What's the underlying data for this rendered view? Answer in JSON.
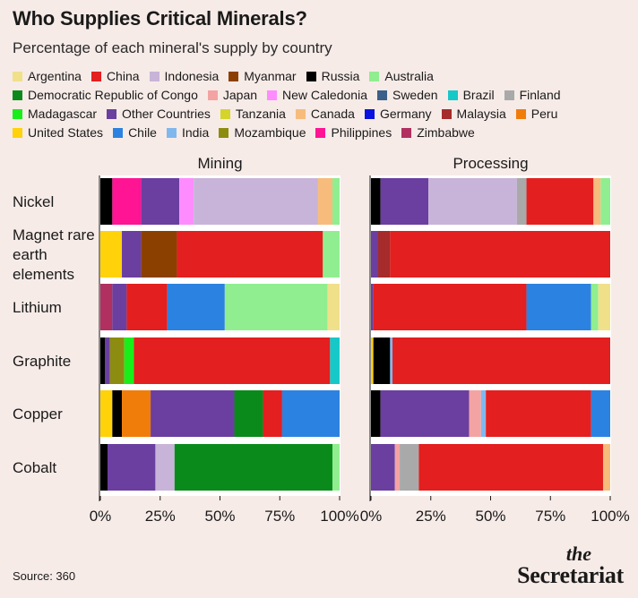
{
  "header": {
    "title": "Who Supplies Critical Minerals?",
    "subtitle": "Percentage of each mineral's supply by country"
  },
  "footer": {
    "source": "Source: 360",
    "brand_the": "the",
    "brand_name": "Secretariat"
  },
  "chart_data": {
    "type": "bar",
    "orientation": "horizontal",
    "stacked": true,
    "x_tick_labels": [
      "0%",
      "25%",
      "50%",
      "75%",
      "100%"
    ],
    "xlim": [
      0,
      100
    ],
    "categories": [
      "Nickel",
      "Magnet rare earth elements",
      "Lithium",
      "Graphite",
      "Copper",
      "Cobalt"
    ],
    "legend": [
      {
        "name": "Argentina",
        "color": "#f0e08a"
      },
      {
        "name": "China",
        "color": "#e31f1f"
      },
      {
        "name": "Indonesia",
        "color": "#c8b4d8"
      },
      {
        "name": "Myanmar",
        "color": "#8b4000"
      },
      {
        "name": "Russia",
        "color": "#000000"
      },
      {
        "name": "Australia",
        "color": "#90ee90"
      },
      {
        "name": "Democratic Republic of Congo",
        "color": "#0b8a1c"
      },
      {
        "name": "Japan",
        "color": "#f4a3a3"
      },
      {
        "name": "New Caledonia",
        "color": "#ff8cff"
      },
      {
        "name": "Sweden",
        "color": "#3a5f8a"
      },
      {
        "name": "Brazil",
        "color": "#17c8c8"
      },
      {
        "name": "Finland",
        "color": "#a9a9a9"
      },
      {
        "name": "Madagascar",
        "color": "#1aee1a"
      },
      {
        "name": "Other Countries",
        "color": "#6a3fa0"
      },
      {
        "name": "Tanzania",
        "color": "#d4d42a"
      },
      {
        "name": "Canada",
        "color": "#f7bc7c"
      },
      {
        "name": "Germany",
        "color": "#0a12e0"
      },
      {
        "name": "Malaysia",
        "color": "#a62b2b"
      },
      {
        "name": "Peru",
        "color": "#f07d0a"
      },
      {
        "name": "United States",
        "color": "#ffd20a"
      },
      {
        "name": "Chile",
        "color": "#2c82e0"
      },
      {
        "name": "India",
        "color": "#80b8ee"
      },
      {
        "name": "Mozambique",
        "color": "#8c8c10"
      },
      {
        "name": "Philippines",
        "color": "#ff1493"
      },
      {
        "name": "Zimbabwe",
        "color": "#b03060"
      }
    ],
    "panels": [
      {
        "title": "Mining",
        "bars": [
          {
            "category": "Nickel",
            "segments": [
              {
                "country": "Russia",
                "value": 5
              },
              {
                "country": "Philippines",
                "value": 12
              },
              {
                "country": "Other Countries",
                "value": 16
              },
              {
                "country": "New Caledonia",
                "value": 6
              },
              {
                "country": "Indonesia",
                "value": 52
              },
              {
                "country": "Canada",
                "value": 6
              },
              {
                "country": "Australia",
                "value": 3
              }
            ]
          },
          {
            "category": "Magnet rare earth elements",
            "segments": [
              {
                "country": "United States",
                "value": 9
              },
              {
                "country": "Other Countries",
                "value": 8
              },
              {
                "country": "Myanmar",
                "value": 15
              },
              {
                "country": "China",
                "value": 61
              },
              {
                "country": "Australia",
                "value": 7
              }
            ]
          },
          {
            "category": "Lithium",
            "segments": [
              {
                "country": "Zimbabwe",
                "value": 5
              },
              {
                "country": "Other Countries",
                "value": 6
              },
              {
                "country": "China",
                "value": 17
              },
              {
                "country": "Chile",
                "value": 24
              },
              {
                "country": "Australia",
                "value": 43
              },
              {
                "country": "Argentina",
                "value": 5
              }
            ]
          },
          {
            "category": "Graphite",
            "segments": [
              {
                "country": "Russia",
                "value": 2
              },
              {
                "country": "Other Countries",
                "value": 2
              },
              {
                "country": "Mozambique",
                "value": 6
              },
              {
                "country": "Madagascar",
                "value": 4
              },
              {
                "country": "China",
                "value": 82
              },
              {
                "country": "Brazil",
                "value": 4
              }
            ]
          },
          {
            "category": "Copper",
            "segments": [
              {
                "country": "United States",
                "value": 5
              },
              {
                "country": "Russia",
                "value": 4
              },
              {
                "country": "Peru",
                "value": 12
              },
              {
                "country": "Other Countries",
                "value": 35
              },
              {
                "country": "Democratic Republic of Congo",
                "value": 12
              },
              {
                "country": "China",
                "value": 8
              },
              {
                "country": "Chile",
                "value": 24
              }
            ]
          },
          {
            "category": "Cobalt",
            "segments": [
              {
                "country": "Russia",
                "value": 3
              },
              {
                "country": "Other Countries",
                "value": 20
              },
              {
                "country": "Indonesia",
                "value": 8
              },
              {
                "country": "Democratic Republic of Congo",
                "value": 66
              },
              {
                "country": "Australia",
                "value": 3
              }
            ]
          }
        ]
      },
      {
        "title": "Processing",
        "bars": [
          {
            "category": "Nickel",
            "segments": [
              {
                "country": "Russia",
                "value": 4
              },
              {
                "country": "Other Countries",
                "value": 20
              },
              {
                "country": "Indonesia",
                "value": 37
              },
              {
                "country": "Finland",
                "value": 4
              },
              {
                "country": "China",
                "value": 28
              },
              {
                "country": "Canada",
                "value": 3
              },
              {
                "country": "Australia",
                "value": 4
              }
            ]
          },
          {
            "category": "Magnet rare earth elements",
            "segments": [
              {
                "country": "Other Countries",
                "value": 3
              },
              {
                "country": "Malaysia",
                "value": 5
              },
              {
                "country": "China",
                "value": 92
              }
            ]
          },
          {
            "category": "Lithium",
            "segments": [
              {
                "country": "Other Countries",
                "value": 1
              },
              {
                "country": "China",
                "value": 64
              },
              {
                "country": "Chile",
                "value": 27
              },
              {
                "country": "Australia",
                "value": 3
              },
              {
                "country": "Argentina",
                "value": 5
              }
            ]
          },
          {
            "category": "Graphite",
            "segments": [
              {
                "country": "United States",
                "value": 1
              },
              {
                "country": "Russia",
                "value": 7
              },
              {
                "country": "India",
                "value": 1
              },
              {
                "country": "China",
                "value": 91
              }
            ]
          },
          {
            "category": "Copper",
            "segments": [
              {
                "country": "Russia",
                "value": 4
              },
              {
                "country": "Other Countries",
                "value": 37
              },
              {
                "country": "Japan",
                "value": 5
              },
              {
                "country": "India",
                "value": 2
              },
              {
                "country": "China",
                "value": 44
              },
              {
                "country": "Chile",
                "value": 8
              }
            ]
          },
          {
            "category": "Cobalt",
            "segments": [
              {
                "country": "Other Countries",
                "value": 10
              },
              {
                "country": "Japan",
                "value": 2
              },
              {
                "country": "Finland",
                "value": 8
              },
              {
                "country": "China",
                "value": 77
              },
              {
                "country": "Canada",
                "value": 3
              }
            ]
          }
        ]
      }
    ]
  }
}
